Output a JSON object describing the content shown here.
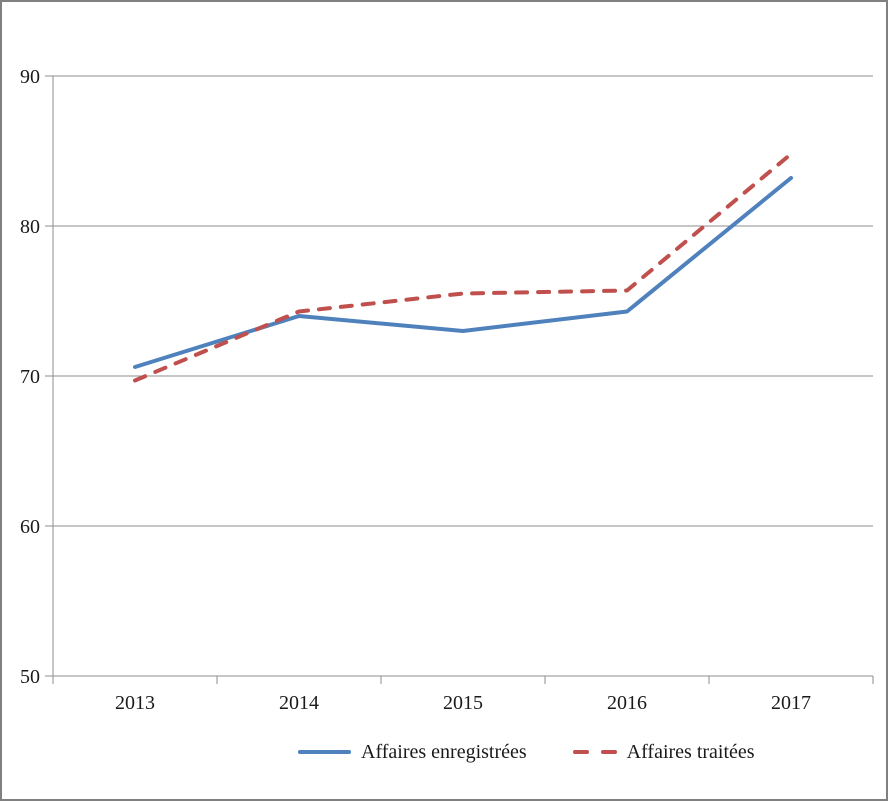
{
  "chart_data": {
    "type": "line",
    "title": "",
    "xlabel": "",
    "ylabel": "",
    "categories": [
      "2013",
      "2014",
      "2015",
      "2016",
      "2017"
    ],
    "series": [
      {
        "name": "Affaires enregistrées",
        "values": [
          70.6,
          74.0,
          73.0,
          74.3,
          83.2
        ],
        "color": "#4F81BD",
        "style": "solid"
      },
      {
        "name": "Affaires traitées",
        "values": [
          69.7,
          74.3,
          75.5,
          75.7,
          84.8
        ],
        "color": "#C0504D",
        "style": "dashed"
      }
    ],
    "ylim": [
      50,
      90
    ],
    "yticks": [
      50,
      60,
      70,
      80,
      90
    ],
    "grid": true,
    "legend_position": "bottom"
  },
  "style": {
    "grid_color": "#8E8E8E",
    "axis_color": "#8E8E8E",
    "text_color": "#1a1a1a",
    "frame_border_color": "#808080",
    "background": "#ffffff"
  }
}
